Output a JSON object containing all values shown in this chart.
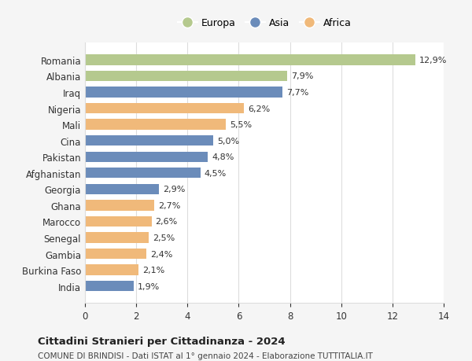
{
  "countries": [
    "Romania",
    "Albania",
    "Iraq",
    "Nigeria",
    "Mali",
    "Cina",
    "Pakistan",
    "Afghanistan",
    "Georgia",
    "Ghana",
    "Marocco",
    "Senegal",
    "Gambia",
    "Burkina Faso",
    "India"
  ],
  "values": [
    12.9,
    7.9,
    7.7,
    6.2,
    5.5,
    5.0,
    4.8,
    4.5,
    2.9,
    2.7,
    2.6,
    2.5,
    2.4,
    2.1,
    1.9
  ],
  "labels": [
    "12,9%",
    "7,9%",
    "7,7%",
    "6,2%",
    "5,5%",
    "5,0%",
    "4,8%",
    "4,5%",
    "2,9%",
    "2,7%",
    "2,6%",
    "2,5%",
    "2,4%",
    "2,1%",
    "1,9%"
  ],
  "continents": [
    "Europa",
    "Europa",
    "Asia",
    "Africa",
    "Africa",
    "Asia",
    "Asia",
    "Asia",
    "Asia",
    "Africa",
    "Africa",
    "Africa",
    "Africa",
    "Africa",
    "Asia"
  ],
  "colors": {
    "Europa": "#b5c98e",
    "Asia": "#6b8cba",
    "Africa": "#f0b97a"
  },
  "xlim": [
    0,
    14
  ],
  "xticks": [
    0,
    2,
    4,
    6,
    8,
    10,
    12,
    14
  ],
  "title": "Cittadini Stranieri per Cittadinanza - 2024",
  "subtitle": "COMUNE DI BRINDISI - Dati ISTAT al 1° gennaio 2024 - Elaborazione TUTTITALIA.IT",
  "bg_color": "#f5f5f5",
  "plot_bg_color": "#ffffff",
  "grid_color": "#dddddd",
  "legend_order": [
    "Europa",
    "Asia",
    "Africa"
  ]
}
